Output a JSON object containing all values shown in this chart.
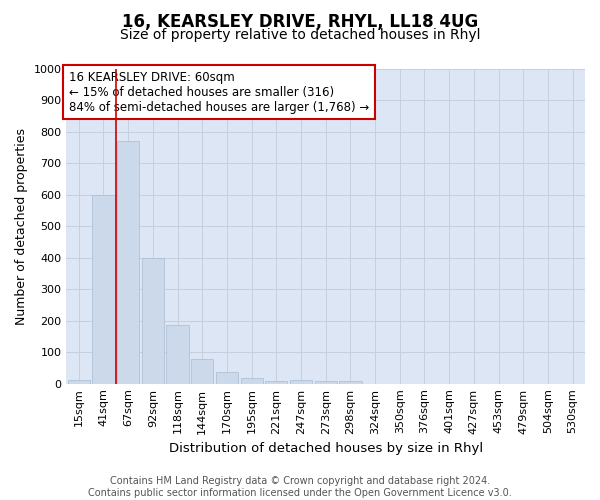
{
  "title": "16, KEARSLEY DRIVE, RHYL, LL18 4UG",
  "subtitle": "Size of property relative to detached houses in Rhyl",
  "xlabel": "Distribution of detached houses by size in Rhyl",
  "ylabel": "Number of detached properties",
  "categories": [
    "15sqm",
    "41sqm",
    "67sqm",
    "92sqm",
    "118sqm",
    "144sqm",
    "170sqm",
    "195sqm",
    "221sqm",
    "247sqm",
    "273sqm",
    "298sqm",
    "324sqm",
    "350sqm",
    "376sqm",
    "401sqm",
    "427sqm",
    "453sqm",
    "479sqm",
    "504sqm",
    "530sqm"
  ],
  "values": [
    13,
    600,
    770,
    400,
    185,
    77,
    37,
    17,
    10,
    13,
    10,
    7,
    0,
    0,
    0,
    0,
    0,
    0,
    0,
    0,
    0
  ],
  "bar_color": "#ccd9ea",
  "bar_edge_color": "#aabbd0",
  "grid_color": "#c5cfe0",
  "background_color": "#dce6f5",
  "annotation_text": "16 KEARSLEY DRIVE: 60sqm\n← 15% of detached houses are smaller (316)\n84% of semi-detached houses are larger (1,768) →",
  "annotation_box_color": "#ffffff",
  "annotation_box_edge": "#cc0000",
  "vline_x": 2,
  "vline_color": "#cc0000",
  "ylim": [
    0,
    1000
  ],
  "yticks": [
    0,
    100,
    200,
    300,
    400,
    500,
    600,
    700,
    800,
    900,
    1000
  ],
  "footnote": "Contains HM Land Registry data © Crown copyright and database right 2024.\nContains public sector information licensed under the Open Government Licence v3.0.",
  "title_fontsize": 12,
  "subtitle_fontsize": 10,
  "xlabel_fontsize": 9.5,
  "ylabel_fontsize": 9,
  "tick_fontsize": 8,
  "annot_fontsize": 8.5,
  "footnote_fontsize": 7
}
